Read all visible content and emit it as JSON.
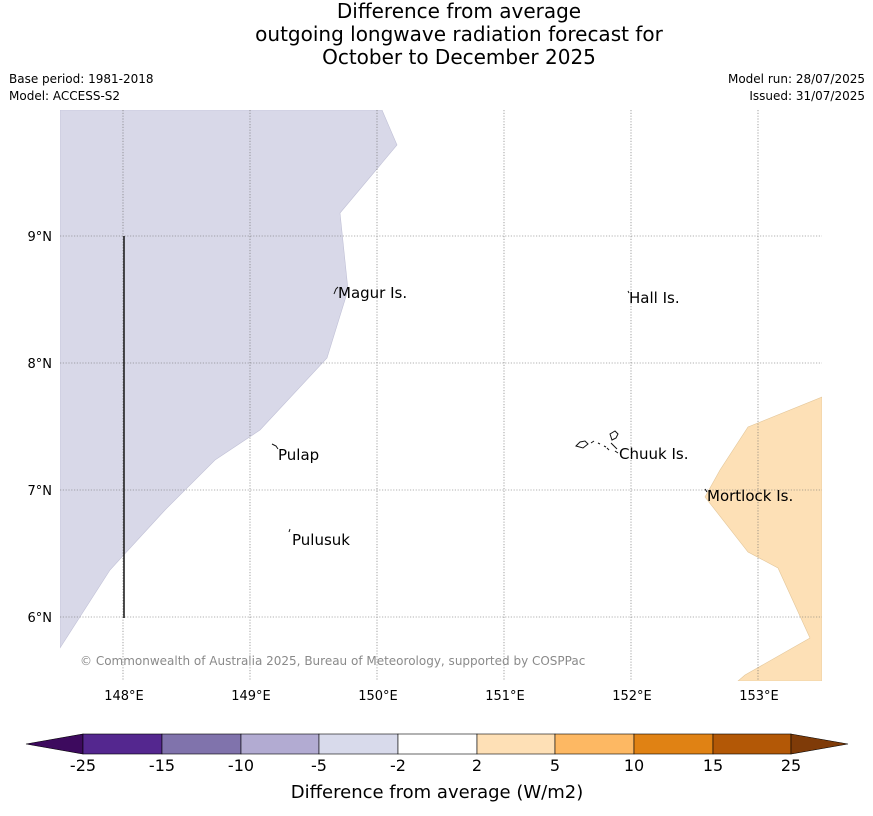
{
  "title": {
    "line1": "Difference from average",
    "line2": "outgoing longwave radiation forecast for",
    "line3": "October to December 2025"
  },
  "meta": {
    "base_period": "Base period: 1981-2018",
    "model": "Model: ACCESS-S2",
    "model_run": "Model run: 28/07/2025",
    "issued": "Issued: 31/07/2025"
  },
  "map": {
    "lat_labels": [
      "9°N",
      "8°N",
      "7°N",
      "6°N"
    ],
    "lon_labels": [
      "148°E",
      "149°E",
      "150°E",
      "151°E",
      "152°E",
      "153°E"
    ],
    "places": [
      {
        "name": "Magur Is."
      },
      {
        "name": "Hall Is."
      },
      {
        "name": "Pulap"
      },
      {
        "name": "Chuuk Is."
      },
      {
        "name": "Mortlock Is."
      },
      {
        "name": "Pulusuk"
      }
    ],
    "copyright": "© Commonwealth of Australia 2025, Bureau of Meteorology, supported by COSPPac",
    "colors": {
      "negative_region": "#d8d8e8",
      "positive_region": "#fde0b6",
      "grid": "#666666"
    }
  },
  "colorbar": {
    "title": "Difference from average (W/m2)",
    "ticks": [
      "-25",
      "-15",
      "-10",
      "-5",
      "-2",
      "2",
      "5",
      "10",
      "15",
      "25"
    ],
    "colors": [
      "#3d0a5e",
      "#54278f",
      "#8073ac",
      "#b2abd2",
      "#d8daeb",
      "#ffffff",
      "#fee0b6",
      "#fdb863",
      "#e08214",
      "#b35806",
      "#7f3b08"
    ]
  }
}
